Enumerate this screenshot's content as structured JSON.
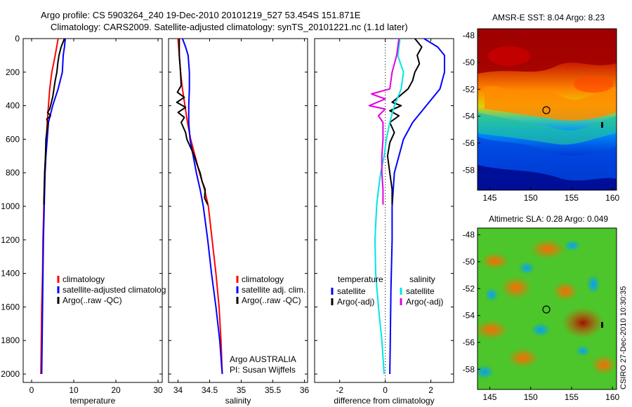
{
  "figure": {
    "title_line1": "Argo profile: CS 5903264_240 19-Dec-2010 20101219_527 53.454S 151.871E",
    "title_line2": "Climatology: CARS2009. Satellite-adjusted climatology: synTS_20101221.nc (1.1d later)",
    "credit": "CSIRO 27-Dec-2010 10:30:35",
    "float_info_line1": "Argo AUSTRALIA",
    "float_info_line2": "PI: Susan Wijffels"
  },
  "colors": {
    "climatology": "#ff0000",
    "satellite": "#0000ff",
    "argo": "#000000",
    "sat_diff": "#00e5e5",
    "argo_adj": "#e000e0"
  },
  "chart_data": [
    {
      "id": "temperature",
      "type": "line",
      "xlabel": "temperature",
      "xlim": [
        -2,
        31
      ],
      "ylim": [
        0,
        2050
      ],
      "xticks": [
        0,
        10,
        20,
        30
      ],
      "yticks": [
        0,
        200,
        400,
        600,
        800,
        1000,
        1200,
        1400,
        1600,
        1800,
        2000
      ],
      "legend": [
        "climatology",
        "satellite-adjusted climatolog",
        "Argo(..raw -QC)"
      ],
      "series": [
        {
          "name": "climatology",
          "color": "#ff0000",
          "points": [
            [
              6.3,
              0
            ],
            [
              5.6,
              100
            ],
            [
              4.8,
              200
            ],
            [
              4.3,
              300
            ],
            [
              4.0,
              400
            ],
            [
              3.7,
              500
            ],
            [
              3.5,
              600
            ],
            [
              3.3,
              700
            ],
            [
              3.1,
              800
            ],
            [
              2.9,
              1000
            ],
            [
              2.7,
              1200
            ],
            [
              2.6,
              1400
            ],
            [
              2.4,
              1600
            ],
            [
              2.3,
              1800
            ],
            [
              2.2,
              2000
            ]
          ]
        },
        {
          "name": "satellite-adjusted climatolog",
          "color": "#0000ff",
          "points": [
            [
              8.0,
              0
            ],
            [
              7.8,
              50
            ],
            [
              7.5,
              100
            ],
            [
              7.3,
              200
            ],
            [
              6.3,
              300
            ],
            [
              5.0,
              400
            ],
            [
              4.0,
              500
            ],
            [
              3.7,
              600
            ],
            [
              3.4,
              700
            ],
            [
              3.2,
              800
            ],
            [
              3.0,
              1000
            ],
            [
              2.8,
              1200
            ],
            [
              2.7,
              1400
            ],
            [
              2.6,
              1600
            ],
            [
              2.5,
              1800
            ],
            [
              2.4,
              2000
            ]
          ]
        },
        {
          "name": "Argo(..raw -QC)",
          "color": "#000000",
          "points": [
            [
              7.8,
              0
            ],
            [
              7.0,
              50
            ],
            [
              6.5,
              100
            ],
            [
              6.2,
              150
            ],
            [
              6.0,
              200
            ],
            [
              5.6,
              250
            ],
            [
              5.3,
              300
            ],
            [
              5.0,
              350
            ],
            [
              4.3,
              420
            ],
            [
              3.8,
              440
            ],
            [
              4.5,
              460
            ],
            [
              3.6,
              480
            ],
            [
              3.9,
              500
            ],
            [
              3.6,
              560
            ],
            [
              3.4,
              600
            ],
            [
              3.3,
              700
            ],
            [
              3.1,
              800
            ],
            [
              3.0,
              900
            ],
            [
              2.9,
              990
            ]
          ]
        }
      ]
    },
    {
      "id": "salinity",
      "type": "line",
      "xlabel": "salinity",
      "xlim": [
        33.85,
        36.05
      ],
      "ylim": [
        0,
        2050
      ],
      "xticks": [
        34,
        34.5,
        35,
        35.5,
        36
      ],
      "legend": [
        "climatology",
        "satellite adj. clim.",
        "Argo(..raw -QC)"
      ],
      "series": [
        {
          "name": "climatology",
          "color": "#ff0000",
          "points": [
            [
              34.0,
              0
            ],
            [
              34.02,
              100
            ],
            [
              34.04,
              200
            ],
            [
              34.07,
              300
            ],
            [
              34.11,
              400
            ],
            [
              34.15,
              500
            ],
            [
              34.2,
              600
            ],
            [
              34.27,
              700
            ],
            [
              34.34,
              800
            ],
            [
              34.42,
              900
            ],
            [
              34.48,
              1000
            ],
            [
              34.54,
              1200
            ],
            [
              34.6,
              1400
            ],
            [
              34.65,
              1600
            ],
            [
              34.68,
              1800
            ],
            [
              34.7,
              2000
            ]
          ]
        },
        {
          "name": "satellite adj. clim.",
          "color": "#0000ff",
          "points": [
            [
              34.07,
              0
            ],
            [
              34.12,
              50
            ],
            [
              34.16,
              100
            ],
            [
              34.18,
              200
            ],
            [
              34.18,
              300
            ],
            [
              34.17,
              400
            ],
            [
              34.17,
              500
            ],
            [
              34.19,
              600
            ],
            [
              34.24,
              700
            ],
            [
              34.29,
              800
            ],
            [
              34.35,
              900
            ],
            [
              34.4,
              1000
            ],
            [
              34.47,
              1200
            ],
            [
              34.53,
              1400
            ],
            [
              34.6,
              1600
            ],
            [
              34.66,
              1800
            ],
            [
              34.7,
              2000
            ]
          ]
        },
        {
          "name": "Argo(..raw -QC)",
          "color": "#000000",
          "points": [
            [
              34.02,
              0
            ],
            [
              34.02,
              100
            ],
            [
              34.04,
              200
            ],
            [
              34.05,
              280
            ],
            [
              33.99,
              320
            ],
            [
              34.1,
              350
            ],
            [
              33.98,
              380
            ],
            [
              34.12,
              410
            ],
            [
              34.0,
              440
            ],
            [
              34.1,
              470
            ],
            [
              34.05,
              500
            ],
            [
              34.12,
              560
            ],
            [
              34.14,
              600
            ],
            [
              34.2,
              650
            ],
            [
              34.26,
              700
            ],
            [
              34.3,
              750
            ],
            [
              34.35,
              800
            ],
            [
              34.38,
              850
            ],
            [
              34.43,
              900
            ],
            [
              34.42,
              950
            ],
            [
              34.47,
              990
            ]
          ]
        }
      ]
    },
    {
      "id": "difference",
      "type": "line",
      "xlabel": "difference from climatology",
      "xlim": [
        -3.1,
        3.0
      ],
      "ylim": [
        0,
        2050
      ],
      "xticks": [
        -2,
        0,
        2
      ],
      "legend_left": {
        "title": "temperature",
        "items": [
          "satellite",
          "Argo(-adj)"
        ]
      },
      "legend_right": {
        "title": "salinity",
        "items": [
          "satellite",
          "Argo(-adj)"
        ]
      },
      "series": [
        {
          "name": "temperature satellite",
          "color": "#0000ff",
          "points": [
            [
              1.7,
              0
            ],
            [
              2.3,
              50
            ],
            [
              2.6,
              100
            ],
            [
              2.6,
              200
            ],
            [
              2.4,
              300
            ],
            [
              1.8,
              400
            ],
            [
              1.2,
              500
            ],
            [
              0.8,
              600
            ],
            [
              0.6,
              700
            ],
            [
              0.4,
              800
            ],
            [
              0.3,
              1000
            ],
            [
              0.3,
              1200
            ],
            [
              0.25,
              1500
            ],
            [
              0.22,
              1800
            ],
            [
              0.2,
              2000
            ]
          ]
        },
        {
          "name": "temperature Argo(-adj)",
          "color": "#000000",
          "points": [
            [
              1.3,
              0
            ],
            [
              1.6,
              50
            ],
            [
              1.4,
              100
            ],
            [
              1.5,
              150
            ],
            [
              1.3,
              200
            ],
            [
              1.2,
              250
            ],
            [
              1.0,
              300
            ],
            [
              0.3,
              380
            ],
            [
              0.7,
              400
            ],
            [
              0.2,
              430
            ],
            [
              0.6,
              460
            ],
            [
              0.2,
              500
            ],
            [
              0.4,
              560
            ],
            [
              0.2,
              620
            ],
            [
              0.1,
              700
            ],
            [
              0.2,
              800
            ],
            [
              0.3,
              900
            ],
            [
              0.3,
              990
            ]
          ]
        },
        {
          "name": "salinity satellite",
          "color": "#00e5e5",
          "points": [
            [
              0.65,
              0
            ],
            [
              0.55,
              100
            ],
            [
              0.8,
              200
            ],
            [
              0.7,
              300
            ],
            [
              0.4,
              400
            ],
            [
              0.2,
              500
            ],
            [
              0.05,
              600
            ],
            [
              -0.05,
              700
            ],
            [
              -0.2,
              800
            ],
            [
              -0.3,
              900
            ],
            [
              -0.38,
              1000
            ],
            [
              -0.45,
              1200
            ],
            [
              -0.42,
              1400
            ],
            [
              -0.3,
              1600
            ],
            [
              -0.15,
              1800
            ],
            [
              -0.05,
              2000
            ]
          ]
        },
        {
          "name": "salinity Argo(-adj)",
          "color": "#e000e0",
          "points": [
            [
              0.6,
              0
            ],
            [
              0.5,
              100
            ],
            [
              0.3,
              200
            ],
            [
              0.2,
              300
            ],
            [
              -0.6,
              330
            ],
            [
              0.0,
              360
            ],
            [
              -0.7,
              400
            ],
            [
              0.0,
              420
            ],
            [
              -0.3,
              460
            ],
            [
              -0.1,
              500
            ],
            [
              -0.1,
              600
            ],
            [
              -0.15,
              700
            ],
            [
              -0.15,
              800
            ],
            [
              -0.1,
              900
            ],
            [
              -0.1,
              990
            ]
          ]
        }
      ]
    },
    {
      "id": "sst_map",
      "type": "heatmap",
      "title": "AMSR-E SST: 8.04 Argo: 8.23",
      "xlim": [
        143.5,
        160.5
      ],
      "ylim": [
        -59.5,
        -47.5
      ],
      "xticks": [
        145,
        150,
        155,
        160
      ],
      "yticks": [
        -48,
        -50,
        -52,
        -54,
        -56,
        -58
      ],
      "colormap": "jet",
      "profile_location": [
        151.871,
        -53.454
      ]
    },
    {
      "id": "sla_map",
      "type": "heatmap",
      "title": "Altimetric SLA: 0.28 Argo: 0.049",
      "xlim": [
        143.5,
        160.5
      ],
      "ylim": [
        -59.5,
        -47.5
      ],
      "xticks": [
        145,
        150,
        155,
        160
      ],
      "yticks": [
        -48,
        -50,
        -52,
        -54,
        -56,
        -58
      ],
      "colormap": "jet",
      "profile_location": [
        151.871,
        -53.454
      ]
    }
  ]
}
